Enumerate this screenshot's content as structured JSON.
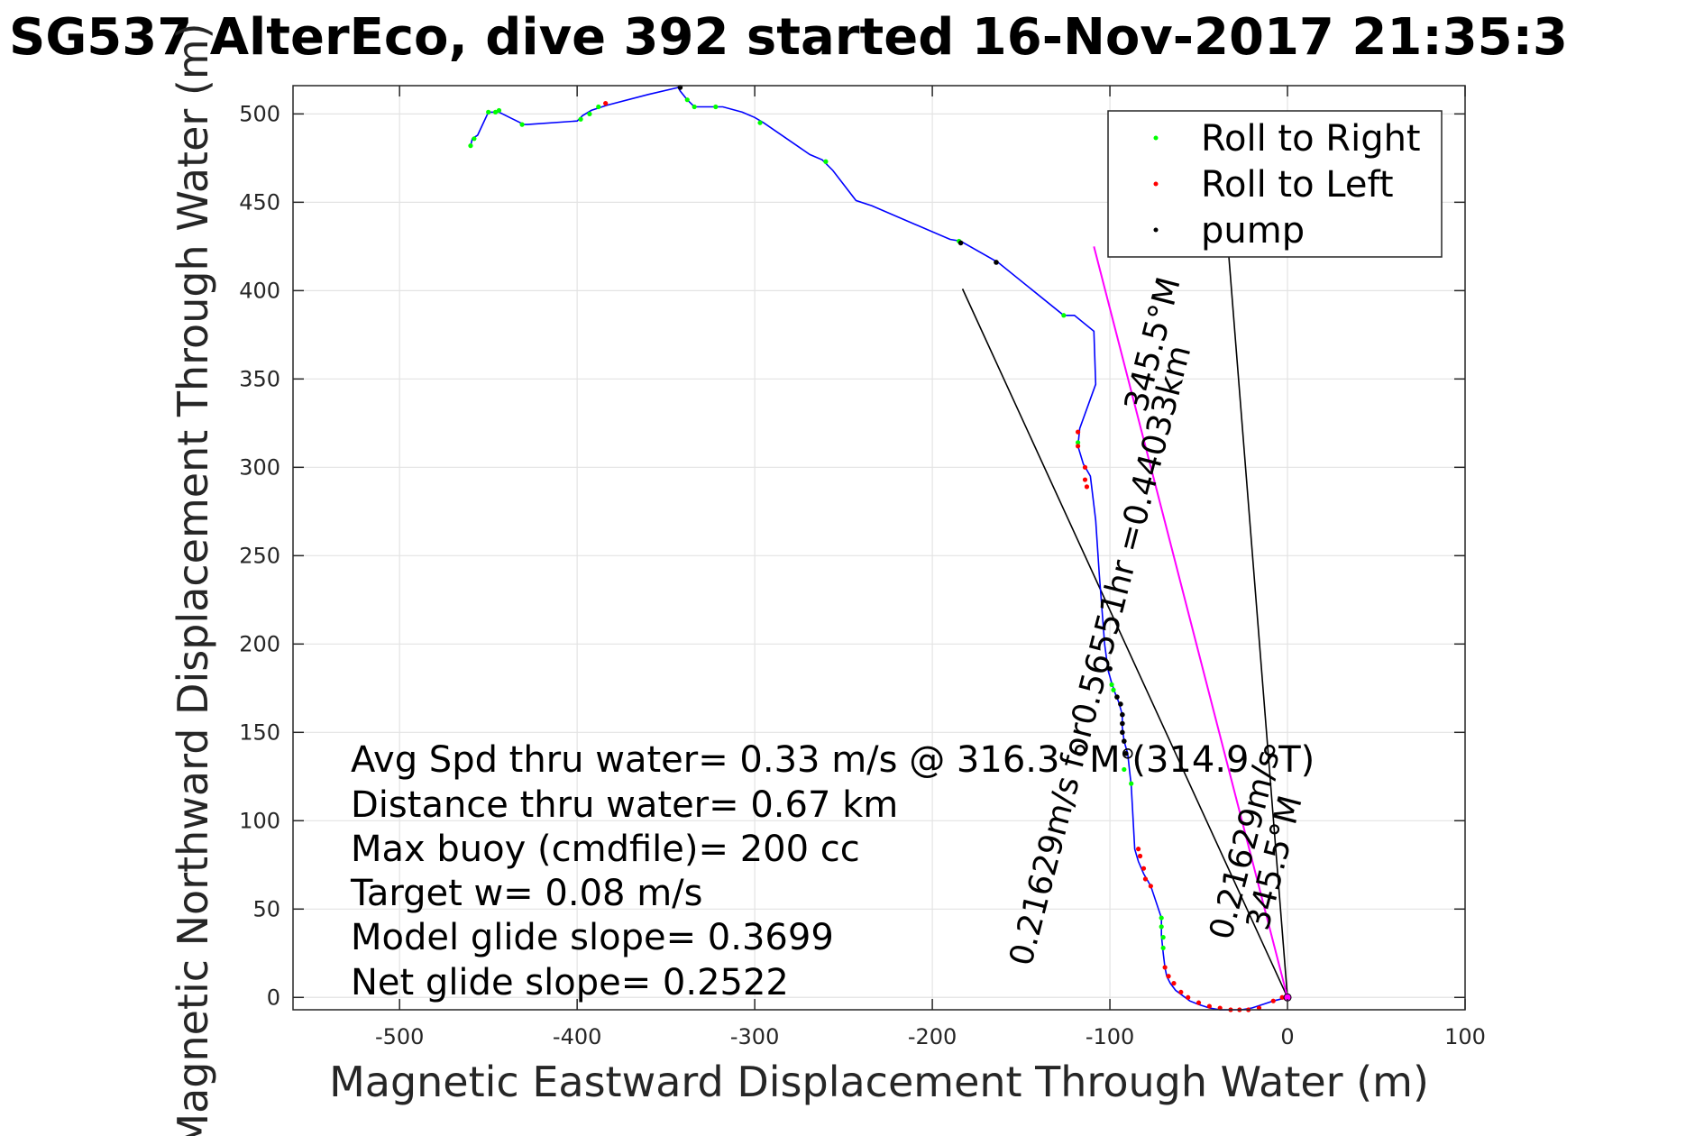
{
  "chart_data": {
    "type": "scatter",
    "title": "SG537 AlterEco, dive 392 started 16-Nov-2017 21:35:3",
    "xlabel": "Magnetic Eastward Displacement Through Water (m)",
    "ylabel": "Magnetic Northward Displacement Through Water (m)",
    "xlim": [
      -560,
      100
    ],
    "ylim": [
      -7,
      516
    ],
    "xticks": [
      -500,
      -400,
      -300,
      -200,
      -100,
      0,
      100
    ],
    "yticks": [
      0,
      50,
      100,
      150,
      200,
      250,
      300,
      350,
      400,
      450,
      500
    ],
    "grid": true,
    "legend": {
      "placement": "top-right",
      "entries": [
        {
          "label": "Roll to Right",
          "color": "#00ff00"
        },
        {
          "label": "Roll to Left",
          "color": "#ff0000"
        },
        {
          "label": "pump",
          "color": "#000000"
        }
      ]
    },
    "colors": {
      "track": "#0000ff",
      "current": "#ff00ff",
      "lines": "#000000"
    },
    "track": [
      [
        0,
        0
      ],
      [
        -8,
        -2
      ],
      [
        -14,
        -4
      ],
      [
        -20,
        -6
      ],
      [
        -26,
        -7
      ],
      [
        -32,
        -7
      ],
      [
        -38,
        -7
      ],
      [
        -44,
        -6
      ],
      [
        -50,
        -4
      ],
      [
        -55,
        -2
      ],
      [
        -59,
        1
      ],
      [
        -63,
        4
      ],
      [
        -66,
        8
      ],
      [
        -68,
        12
      ],
      [
        -69,
        17
      ],
      [
        -70,
        25
      ],
      [
        -71,
        35
      ],
      [
        -71,
        45
      ],
      [
        -77,
        63
      ],
      [
        -81,
        70
      ],
      [
        -84,
        77
      ],
      [
        -86,
        84
      ],
      [
        -88,
        120
      ],
      [
        -89,
        129
      ],
      [
        -90,
        138
      ],
      [
        -92,
        145
      ],
      [
        -93,
        153
      ],
      [
        -93,
        160
      ],
      [
        -95,
        167
      ],
      [
        -97,
        172
      ],
      [
        -99,
        178
      ],
      [
        -101,
        185
      ],
      [
        -103,
        200
      ],
      [
        -106,
        240
      ],
      [
        -108,
        270
      ],
      [
        -111,
        295
      ],
      [
        -115,
        302
      ],
      [
        -118,
        312
      ],
      [
        -117,
        322
      ],
      [
        -108,
        347
      ],
      [
        -109,
        377
      ],
      [
        -120,
        386
      ],
      [
        -126,
        386
      ],
      [
        -163,
        416
      ],
      [
        -184,
        428
      ],
      [
        -190,
        429
      ],
      [
        -234,
        448
      ],
      [
        -243,
        451
      ],
      [
        -256,
        468
      ],
      [
        -262,
        474
      ],
      [
        -269,
        477
      ],
      [
        -295,
        495
      ],
      [
        -300,
        498
      ],
      [
        -307,
        501
      ],
      [
        -318,
        504
      ],
      [
        -327,
        504
      ],
      [
        -334,
        504
      ],
      [
        -338,
        508
      ],
      [
        -342,
        513
      ],
      [
        -343,
        515
      ],
      [
        -360,
        511
      ],
      [
        -383,
        505
      ],
      [
        -392,
        502
      ],
      [
        -397,
        499
      ],
      [
        -400,
        496
      ],
      [
        -428,
        494
      ],
      [
        -430,
        494
      ],
      [
        -438,
        498
      ],
      [
        -444,
        501
      ],
      [
        -450,
        501
      ],
      [
        -456,
        488
      ],
      [
        -459,
        486
      ],
      [
        -460,
        482
      ]
    ],
    "roll_right": [
      [
        -460,
        482
      ],
      [
        -458,
        486
      ],
      [
        -450,
        501
      ],
      [
        -446,
        501
      ],
      [
        -444,
        502
      ],
      [
        -431,
        494
      ],
      [
        -398,
        497
      ],
      [
        -393,
        500
      ],
      [
        -388,
        504
      ],
      [
        -338,
        508
      ],
      [
        -334,
        504
      ],
      [
        -322,
        504
      ],
      [
        -297,
        495
      ],
      [
        -260,
        473
      ],
      [
        -126,
        386
      ],
      [
        -118,
        314
      ],
      [
        -71,
        45
      ],
      [
        -71,
        40
      ],
      [
        -70,
        34
      ],
      [
        -70,
        28
      ],
      [
        -99,
        177
      ],
      [
        -98,
        174
      ],
      [
        -92,
        129
      ],
      [
        -88,
        121
      ],
      [
        -185,
        428
      ]
    ],
    "roll_left": [
      [
        -384,
        506
      ],
      [
        -118,
        320
      ],
      [
        -118,
        312
      ],
      [
        -114,
        300
      ],
      [
        -114,
        293
      ],
      [
        -113,
        289
      ],
      [
        -84,
        84
      ],
      [
        -83,
        80
      ],
      [
        -81,
        73
      ],
      [
        -80,
        67
      ],
      [
        -77,
        63
      ],
      [
        -69,
        17
      ],
      [
        -67,
        12
      ],
      [
        -64,
        8
      ],
      [
        -60,
        3
      ],
      [
        -56,
        0
      ],
      [
        -50,
        -3
      ],
      [
        -44,
        -5
      ],
      [
        -38,
        -6
      ],
      [
        -32,
        -7
      ],
      [
        -27,
        -7
      ],
      [
        -22,
        -7
      ],
      [
        -16,
        -6
      ],
      [
        -8,
        -2
      ],
      [
        -3,
        0
      ]
    ],
    "pump": [
      [
        -342,
        515
      ],
      [
        -184,
        427
      ],
      [
        -164,
        416
      ],
      [
        -100,
        186
      ],
      [
        -96,
        170
      ],
      [
        -94,
        166
      ],
      [
        -93,
        160
      ],
      [
        -93,
        155
      ],
      [
        -93,
        150
      ],
      [
        -92,
        145
      ],
      [
        -91,
        138
      ],
      [
        0,
        0
      ]
    ],
    "current_line": [
      [
        0,
        0
      ],
      [
        -109,
        425
      ]
    ],
    "guide_lines": [
      [
        [
          0,
          0
        ],
        [
          -183,
          401
        ]
      ],
      [
        [
          0,
          0
        ],
        [
          -33,
          419
        ]
      ]
    ],
    "annotations": {
      "stats": [
        "Avg Spd thru water=  0.33 m/s @ 316.3 °M (314.9 °T)",
        "Distance thru water=  0.67 km",
        "Max buoy (cmdfile)= 200 cc",
        "Target w= 0.08 m/s",
        "Model glide slope= 0.3699",
        "Net glide slope= 0.2522"
      ],
      "current_label": "0.21629m/s for0.56551hr =0.44033km",
      "current_heading": "345.5°M",
      "small_label": "0.21629m/s",
      "small_heading": "345.5°M"
    }
  }
}
